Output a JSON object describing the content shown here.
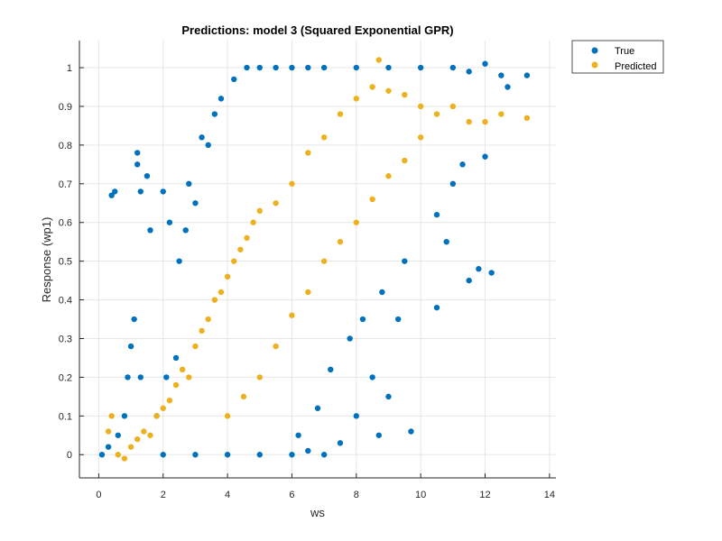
{
  "chart_data": {
    "type": "scatter",
    "title": "Predictions: model 3 (Squared Exponential GPR)",
    "xlabel": "ws",
    "ylabel": "Response (wp1)",
    "xlim": [
      -0.6,
      14.2
    ],
    "ylim": [
      -0.06,
      1.07
    ],
    "x_ticks": [
      0,
      2,
      4,
      6,
      8,
      10,
      12,
      14
    ],
    "y_ticks": [
      0,
      0.1,
      0.2,
      0.3,
      0.4,
      0.5,
      0.6,
      0.7,
      0.8,
      0.9,
      1
    ],
    "grid": true,
    "legend_position": "outside-top-right",
    "colors": {
      "true": "#0072BD",
      "predicted": "#EDB120",
      "axis": "#262626",
      "grid": "#e6e6e6"
    },
    "legend": [
      {
        "name": "True",
        "color": "#0072BD"
      },
      {
        "name": "Predicted",
        "color": "#EDB120"
      }
    ],
    "series": [
      {
        "name": "True",
        "color": "#0072BD",
        "points": [
          [
            0.1,
            0
          ],
          [
            0.3,
            0.02
          ],
          [
            0.4,
            0.67
          ],
          [
            0.5,
            0.68
          ],
          [
            0.6,
            0.05
          ],
          [
            0.8,
            0.1
          ],
          [
            0.9,
            0.2
          ],
          [
            1.0,
            0.28
          ],
          [
            1.1,
            0.35
          ],
          [
            1.2,
            0.78
          ],
          [
            1.2,
            0.75
          ],
          [
            1.3,
            0.68
          ],
          [
            1.3,
            0.2
          ],
          [
            1.5,
            0.72
          ],
          [
            1.6,
            0.58
          ],
          [
            1.8,
            0.1
          ],
          [
            2.0,
            0.68
          ],
          [
            2.1,
            0.2
          ],
          [
            2.2,
            0.6
          ],
          [
            2.4,
            0.25
          ],
          [
            2.5,
            0.5
          ],
          [
            2.7,
            0.58
          ],
          [
            2.8,
            0.7
          ],
          [
            3.0,
            0.65
          ],
          [
            3.2,
            0.82
          ],
          [
            3.4,
            0.8
          ],
          [
            3.6,
            0.88
          ],
          [
            3.8,
            0.92
          ],
          [
            4.2,
            0.97
          ],
          [
            4.6,
            1.0
          ],
          [
            5.0,
            1.0
          ],
          [
            5.5,
            1.0
          ],
          [
            6.0,
            1.0
          ],
          [
            6.5,
            1.0
          ],
          [
            7.0,
            1.0
          ],
          [
            8.0,
            1.0
          ],
          [
            9.0,
            1.0
          ],
          [
            10.0,
            1.0
          ],
          [
            11.0,
            1.0
          ],
          [
            11.5,
            0.99
          ],
          [
            12.0,
            1.01
          ],
          [
            12.5,
            0.98
          ],
          [
            12.7,
            0.95
          ],
          [
            13.3,
            0.98
          ],
          [
            12.0,
            0.77
          ],
          [
            11.5,
            0.45
          ],
          [
            11.8,
            0.48
          ],
          [
            12.2,
            0.47
          ],
          [
            10.5,
            0.38
          ],
          [
            9.7,
            0.06
          ],
          [
            9.0,
            0.15
          ],
          [
            8.5,
            0.2
          ],
          [
            8.7,
            0.05
          ],
          [
            8.0,
            0.1
          ],
          [
            7.5,
            0.03
          ],
          [
            7.0,
            0.0
          ],
          [
            6.5,
            0.01
          ],
          [
            6.0,
            0.0
          ],
          [
            5.0,
            0.0
          ],
          [
            4.0,
            0.0
          ],
          [
            3.0,
            0.0
          ],
          [
            2.0,
            0.0
          ],
          [
            10.5,
            0.62
          ],
          [
            11.0,
            0.7
          ],
          [
            11.3,
            0.75
          ],
          [
            10.8,
            0.55
          ],
          [
            9.5,
            0.5
          ],
          [
            9.3,
            0.35
          ],
          [
            8.8,
            0.42
          ],
          [
            8.2,
            0.35
          ],
          [
            7.8,
            0.3
          ],
          [
            7.2,
            0.22
          ],
          [
            6.8,
            0.12
          ],
          [
            6.2,
            0.05
          ]
        ]
      },
      {
        "name": "Predicted",
        "color": "#EDB120",
        "points": [
          [
            0.3,
            0.06
          ],
          [
            0.4,
            0.1
          ],
          [
            0.6,
            0.0
          ],
          [
            0.8,
            -0.01
          ],
          [
            1.0,
            0.02
          ],
          [
            1.2,
            0.04
          ],
          [
            1.4,
            0.06
          ],
          [
            1.6,
            0.05
          ],
          [
            1.8,
            0.1
          ],
          [
            2.0,
            0.12
          ],
          [
            2.2,
            0.14
          ],
          [
            2.4,
            0.18
          ],
          [
            2.6,
            0.22
          ],
          [
            2.8,
            0.2
          ],
          [
            3.0,
            0.28
          ],
          [
            3.2,
            0.32
          ],
          [
            3.4,
            0.35
          ],
          [
            3.6,
            0.4
          ],
          [
            3.8,
            0.42
          ],
          [
            4.0,
            0.46
          ],
          [
            4.2,
            0.5
          ],
          [
            4.4,
            0.53
          ],
          [
            4.6,
            0.56
          ],
          [
            4.8,
            0.6
          ],
          [
            5.0,
            0.63
          ],
          [
            5.5,
            0.65
          ],
          [
            6.0,
            0.7
          ],
          [
            6.5,
            0.78
          ],
          [
            7.0,
            0.82
          ],
          [
            7.5,
            0.88
          ],
          [
            8.0,
            0.92
          ],
          [
            8.5,
            0.95
          ],
          [
            8.7,
            1.02
          ],
          [
            9.0,
            0.94
          ],
          [
            9.5,
            0.93
          ],
          [
            10.0,
            0.9
          ],
          [
            10.5,
            0.88
          ],
          [
            11.0,
            0.9
          ],
          [
            11.5,
            0.86
          ],
          [
            12.0,
            0.86
          ],
          [
            12.5,
            0.88
          ],
          [
            13.3,
            0.87
          ],
          [
            4.0,
            0.1
          ],
          [
            4.5,
            0.15
          ],
          [
            5.0,
            0.2
          ],
          [
            5.5,
            0.28
          ],
          [
            6.0,
            0.36
          ],
          [
            6.5,
            0.42
          ],
          [
            7.0,
            0.5
          ],
          [
            7.5,
            0.55
          ],
          [
            8.0,
            0.6
          ],
          [
            8.5,
            0.66
          ],
          [
            9.0,
            0.72
          ],
          [
            9.5,
            0.76
          ],
          [
            10.0,
            0.82
          ]
        ]
      }
    ]
  }
}
